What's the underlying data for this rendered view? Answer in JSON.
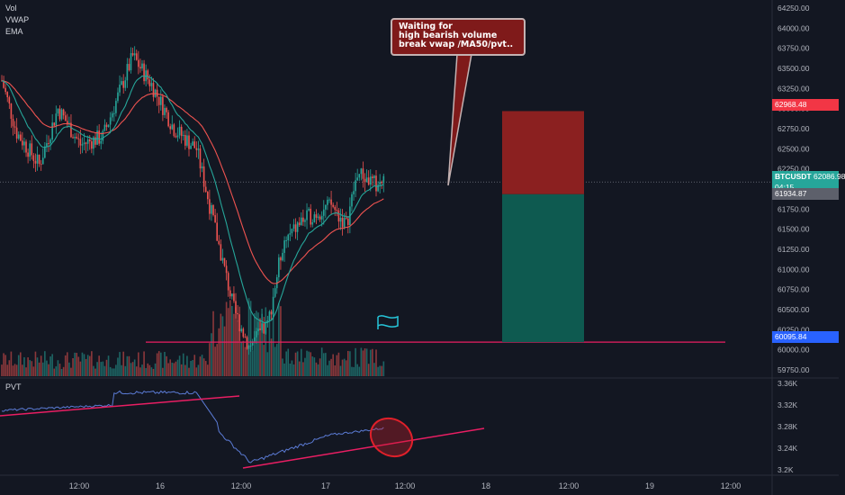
{
  "chart_data": {
    "type": "candlestick",
    "symbol": "BTCUSDT",
    "indicators": [
      "Vol",
      "VWAP",
      "EMA"
    ],
    "y_ticks": [
      "64250.00",
      "64000.00",
      "63750.00",
      "63500.00",
      "63250.00",
      "63000.00",
      "62750.00",
      "62500.00",
      "62250.00",
      "62000.00",
      "61750.00",
      "61500.00",
      "61250.00",
      "61000.00",
      "60750.00",
      "60500.00",
      "60250.00",
      "60000.00",
      "59750.00"
    ],
    "x_ticks": [
      "12:00",
      "16",
      "12:00",
      "17",
      "12:00",
      "18",
      "12:00",
      "19",
      "12:00"
    ],
    "ylim": [
      59650,
      64350
    ],
    "current_price": {
      "label": "BTCUSDT",
      "value": "62086.98",
      "countdown": "04:15"
    },
    "stop_level": "62968.48",
    "entry_level": "61934.87",
    "target_level": "60095.84",
    "annotation": [
      "Waiting for",
      "high bearish volume",
      "break vwap /MA50/pvt.."
    ],
    "pvt": {
      "label": "PVT",
      "y_ticks": [
        "3.36K",
        "3.32K",
        "3.28K",
        "3.24K",
        "3.2K"
      ],
      "ylim": [
        3.195,
        3.37
      ]
    },
    "colors": {
      "up": "#26a69a",
      "down": "#ef5350",
      "vwap": "#26a69a",
      "ema": "#ef5350",
      "pink_line": "#e91e63",
      "pvt": "#5b7bd5",
      "stop_zone": "#8b2020",
      "target_zone": "#0e5a50"
    }
  }
}
